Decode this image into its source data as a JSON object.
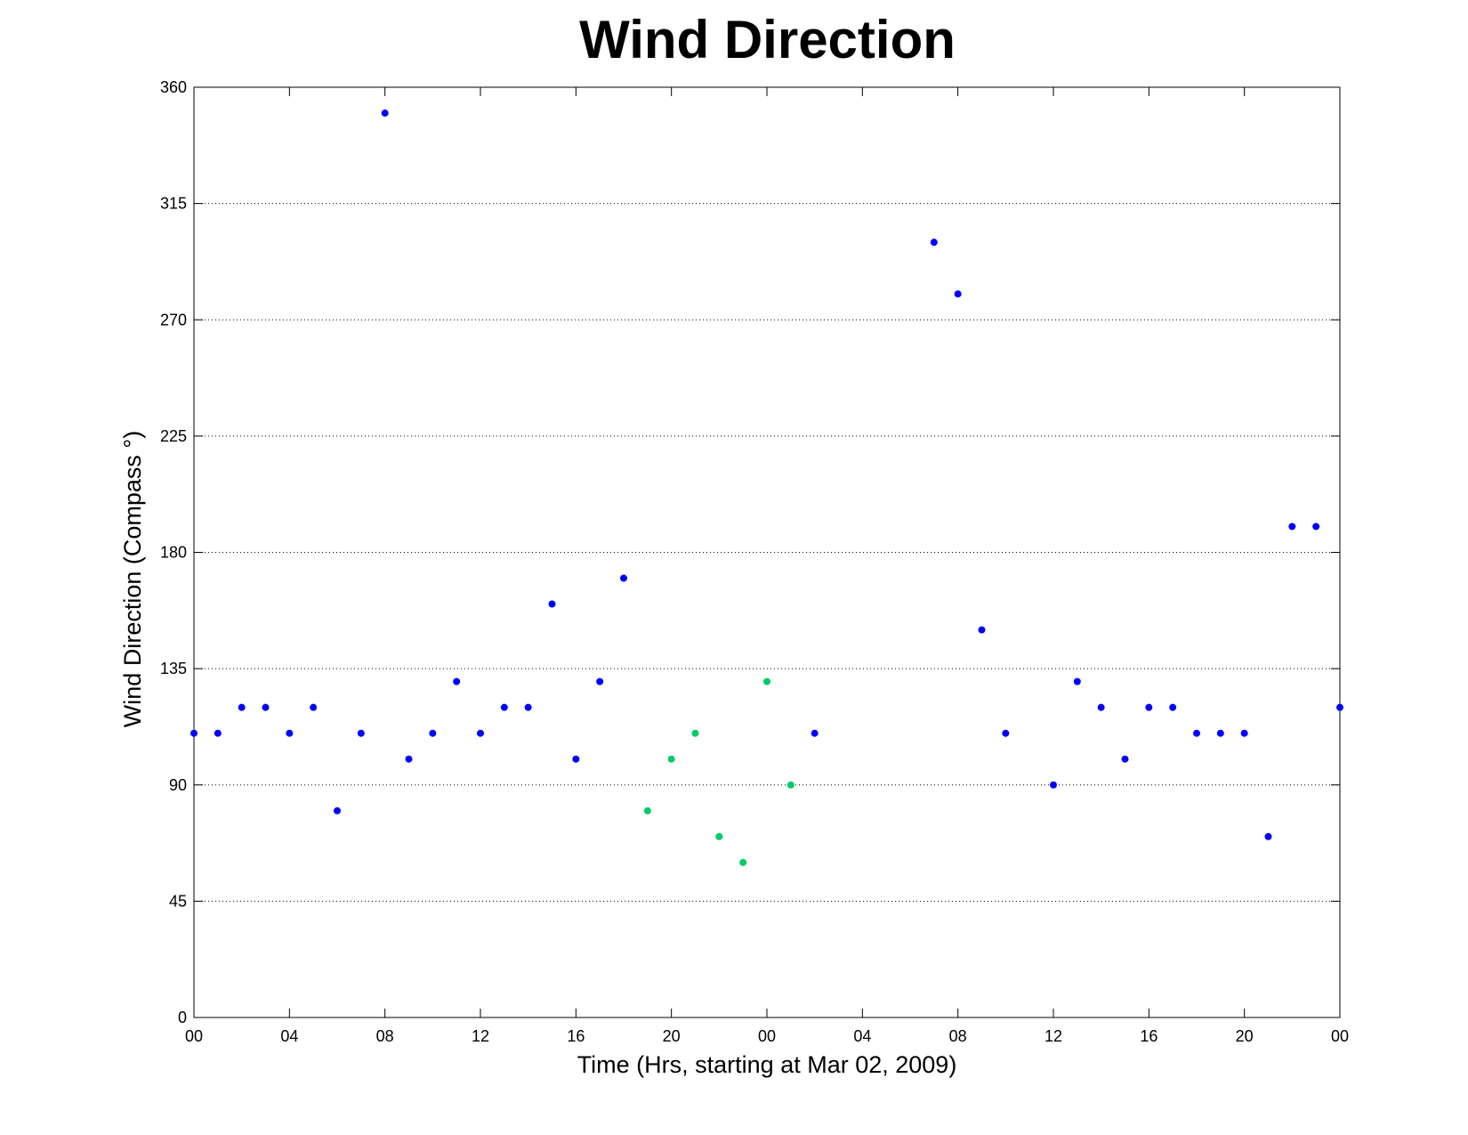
{
  "chart_data": {
    "type": "scatter",
    "title": "Wind Direction",
    "xlabel": "Time (Hrs, starting at Mar 02, 2009)",
    "ylabel": "Wind Direction (Compass  °)",
    "ylim": [
      0,
      360
    ],
    "xlim": [
      0,
      48
    ],
    "x_unit": "hours since 2009-03-02 00:00",
    "yticks": [
      0,
      45,
      90,
      135,
      180,
      225,
      270,
      315,
      360
    ],
    "xticks": [
      0,
      4,
      8,
      12,
      16,
      20,
      24,
      28,
      32,
      36,
      40,
      44,
      48
    ],
    "xtick_labels": [
      "00",
      "04",
      "08",
      "12",
      "16",
      "20",
      "00",
      "04",
      "08",
      "12",
      "16",
      "20",
      "00"
    ],
    "grid": "y-dotted",
    "colors": {
      "blue": "#0000ff",
      "green": "#00cc66"
    },
    "series": [
      {
        "color": "#0000ff",
        "x": [
          0,
          1,
          2,
          3,
          4,
          5,
          6,
          7,
          8,
          9,
          10,
          11,
          12,
          13,
          14,
          15,
          16,
          17,
          18,
          26,
          31,
          32,
          33,
          34,
          36,
          37,
          38,
          39,
          40,
          41,
          42,
          43,
          44,
          45,
          46,
          47,
          48
        ],
        "y": [
          110,
          110,
          120,
          120,
          110,
          120,
          80,
          110,
          350,
          100,
          110,
          130,
          110,
          120,
          120,
          160,
          100,
          130,
          170,
          110,
          300,
          280,
          150,
          110,
          90,
          130,
          120,
          100,
          120,
          120,
          110,
          110,
          110,
          70,
          190,
          190,
          120
        ]
      },
      {
        "color": "#00cc66",
        "x": [
          19,
          20,
          21,
          22,
          23,
          24,
          25
        ],
        "y": [
          80,
          100,
          110,
          70,
          60,
          130,
          90
        ]
      }
    ]
  }
}
